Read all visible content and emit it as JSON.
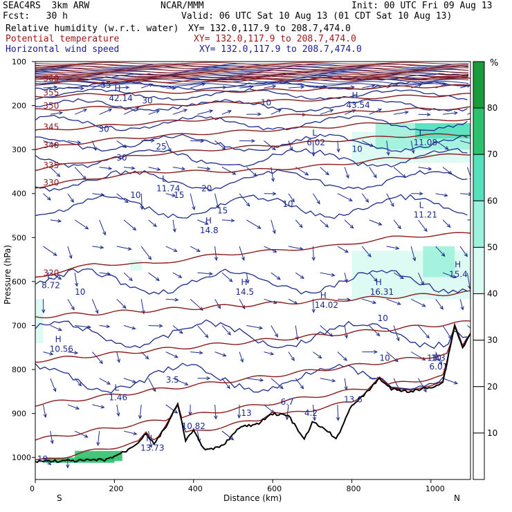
{
  "header": {
    "model": "SEAC4RS  3km ARW",
    "org": "NCAR/MMM",
    "init": "Init: 00 UTC Fri 09 Aug 13",
    "fcst": "Fcst:   30 h",
    "valid": "Valid: 06 UTC Sat 10 Aug 13 (01 CDT Sat 10 Aug 13)",
    "field1_name": "Relative humidity (w.r.t. water)",
    "field1_xy": "XY= 132.0,117.9 to 208.7,474.0",
    "field2_name": "Potential temperature",
    "field2_xy": "XY= 132.0,117.9 to 208.7,474.0",
    "field3_name": "Horizontal wind speed",
    "field3_xy": "XY= 132.0,117.9 to 208.7,474.0"
  },
  "colors": {
    "theta": "#8b1a1a",
    "wind_speed": "#1c2a8c",
    "vectors": "#1c2a8c",
    "terrain": "#000000",
    "rh_levels": [
      "#ffffff",
      "#ffffff",
      "#ffffff",
      "#ffffff",
      "#d9fbf2",
      "#9ef2dd",
      "#56e0bb",
      "#2ec16d",
      "#1a9a3a"
    ]
  },
  "chart_data": {
    "type": "cross-section",
    "xlabel": "Distance (km)",
    "ylabel": "Pressure (hPa)",
    "xlim": [
      0,
      1100
    ],
    "ylim": [
      1050,
      100
    ],
    "x_ticks": [
      0,
      200,
      400,
      600,
      800,
      1000
    ],
    "y_ticks": [
      100,
      200,
      300,
      400,
      500,
      600,
      700,
      800,
      900,
      1000
    ],
    "x_end_labels": {
      "left": "S",
      "right": "N"
    },
    "colorbar": {
      "unit": "%",
      "ticks": [
        10,
        20,
        30,
        40,
        50,
        60,
        70,
        80
      ]
    },
    "terrain_surface_hPa": {
      "x": [
        0,
        100,
        180,
        230,
        260,
        280,
        300,
        330,
        360,
        380,
        400,
        430,
        470,
        520,
        560,
        600,
        640,
        680,
        700,
        740,
        760,
        800,
        830,
        870,
        900,
        950,
        1000,
        1030,
        1060,
        1080,
        1100
      ],
      "p": [
        1008,
        1008,
        1005,
        985,
        965,
        945,
        970,
        930,
        880,
        960,
        940,
        985,
        975,
        930,
        925,
        900,
        905,
        960,
        920,
        940,
        960,
        880,
        860,
        820,
        845,
        850,
        840,
        830,
        700,
        750,
        720
      ]
    },
    "theta_contours": [
      {
        "label": "320",
        "x": [
          0,
          150,
          300,
          450,
          600,
          750,
          900,
          1100
        ],
        "p": [
          590,
          560,
          560,
          540,
          530,
          520,
          500,
          490
        ]
      },
      {
        "label": "330",
        "x": [
          0,
          150,
          300,
          450,
          600,
          750,
          900,
          1100
        ],
        "p": [
          385,
          365,
          350,
          350,
          345,
          335,
          320,
          310
        ]
      },
      {
        "label": "335",
        "x": [
          0,
          150,
          300,
          450,
          600,
          750,
          900,
          1100
        ],
        "p": [
          345,
          325,
          310,
          300,
          290,
          280,
          270,
          265
        ]
      },
      {
        "label": "340",
        "x": [
          0,
          150,
          300,
          450,
          600,
          750,
          900,
          1100
        ],
        "p": [
          300,
          280,
          270,
          262,
          255,
          248,
          238,
          230
        ]
      },
      {
        "label": "345",
        "x": [
          0,
          150,
          300,
          450,
          600,
          750,
          900,
          1100
        ],
        "p": [
          258,
          248,
          238,
          230,
          225,
          218,
          210,
          205
        ]
      },
      {
        "label": "350",
        "x": [
          0,
          150,
          300,
          450,
          600,
          750,
          900,
          1100
        ],
        "p": [
          210,
          205,
          200,
          195,
          190,
          185,
          180,
          175
        ]
      },
      {
        "label": "355",
        "x": [
          0,
          150,
          300,
          450,
          600,
          750,
          900,
          1100
        ],
        "p": [
          180,
          175,
          170,
          168,
          165,
          162,
          158,
          155
        ]
      },
      {
        "label": "360",
        "x": [
          0,
          150,
          300,
          450,
          600,
          750,
          900,
          1100
        ],
        "p": [
          148,
          146,
          145,
          144,
          142,
          140,
          138,
          136
        ]
      }
    ],
    "wind_contour_labels": [
      "30",
      "25",
      "20",
      "15",
      "10",
      "30",
      "35",
      "30",
      "10",
      "10",
      "10",
      "15",
      "10",
      "10",
      "10"
    ],
    "extrema": [
      {
        "type": "H",
        "value": "42.14",
        "x": 200,
        "p": 190
      },
      {
        "type": "H",
        "value": "43.54",
        "x": 800,
        "p": 205
      },
      {
        "type": "L",
        "value": "11.74",
        "x": 320,
        "p": 395
      },
      {
        "type": "L",
        "value": "6.02",
        "x": 700,
        "p": 290
      },
      {
        "type": "L",
        "value": "11.08",
        "x": 970,
        "p": 290
      },
      {
        "type": "L",
        "value": "11.21",
        "x": 970,
        "p": 455
      },
      {
        "type": "H",
        "value": "14.8",
        "x": 430,
        "p": 490
      },
      {
        "type": "L",
        "value": "8.72",
        "x": 30,
        "p": 615
      },
      {
        "type": "H",
        "value": "14.5",
        "x": 520,
        "p": 630
      },
      {
        "type": "H",
        "value": "14.02",
        "x": 720,
        "p": 660
      },
      {
        "type": "H",
        "value": "16.31",
        "x": 860,
        "p": 630
      },
      {
        "type": "H",
        "value": "15.4",
        "x": 1060,
        "p": 590
      },
      {
        "type": "H",
        "value": "10.56",
        "x": 50,
        "p": 760
      },
      {
        "type": "L",
        "value": "1.46",
        "x": 200,
        "p": 870
      },
      {
        "type": "H",
        "value": "13.73",
        "x": 280,
        "p": 985
      },
      {
        "type": "L",
        "value": "6.01",
        "x": 1010,
        "p": 800
      }
    ],
    "other_labels": [
      "3.5",
      "10.82",
      "13",
      "6.7",
      "4.2",
      "13.6",
      "11.3",
      "10",
      "19"
    ],
    "grid": false,
    "legend": "right colorbar"
  }
}
